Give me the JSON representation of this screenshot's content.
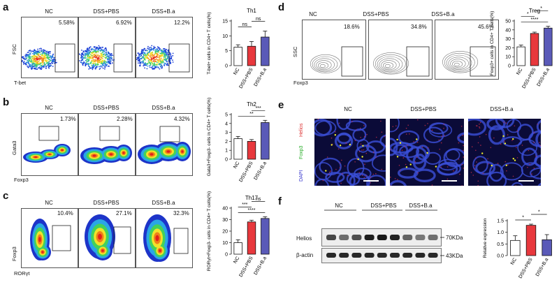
{
  "panels": {
    "a": {
      "label": "a",
      "groups": [
        "NC",
        "DSS+PBS",
        "DSS+B.a"
      ],
      "percentages": [
        "5.58%",
        "6.92%",
        "12.2%"
      ],
      "y_axis": "FSC",
      "x_axis": "T-bet"
    },
    "b": {
      "label": "b",
      "groups": [
        "NC",
        "DSS+PBS",
        "DSS+B.a"
      ],
      "percentages": [
        "1.73%",
        "2.28%",
        "4.32%"
      ],
      "y_axis": "Gata3",
      "x_axis": "Foxp3"
    },
    "c": {
      "label": "c",
      "groups": [
        "NC",
        "DSS+PBS",
        "DSS+B.a"
      ],
      "percentages": [
        "10.4%",
        "27.1%",
        "32.3%"
      ],
      "y_axis": "Foxp3",
      "x_axis": "RORγt"
    },
    "d": {
      "label": "d",
      "groups": [
        "NC",
        "DSS+PBS",
        "DSS+B.a"
      ],
      "percentages": [
        "18.6%",
        "34.8%",
        "45.6%"
      ],
      "y_axis": "SSC",
      "x_axis": "Foxp3"
    },
    "e": {
      "label": "e",
      "groups": [
        "NC",
        "DSS+PBS",
        "DSS+B.a"
      ],
      "stains": {
        "helios": "Helios",
        "foxp3": "Foxp3",
        "dapi": "DAPI"
      }
    },
    "f": {
      "label": "f",
      "groups": [
        "NC",
        "DSS+PBS",
        "DSS+B.a"
      ],
      "rows": [
        "Helios",
        "β-actin"
      ],
      "sizes": [
        "70KDa",
        "43KDa"
      ]
    }
  },
  "colors": {
    "nc": "#ffffff",
    "pbs": "#e8383d",
    "ba": "#5a5ab8"
  },
  "chart_data": [
    {
      "id": "a",
      "type": "bar",
      "title": "Th1",
      "ylabel": "T-bet+ cells in CD4+ T cells(%)",
      "categories": [
        "NC",
        "DSS+PBS",
        "DSS+B.a"
      ],
      "values": [
        6.2,
        6.5,
        9.6
      ],
      "errors": [
        0.8,
        1.6,
        2.0
      ],
      "ylim": [
        0,
        15
      ],
      "yticks": [
        0,
        5,
        10,
        15
      ],
      "significance": [
        {
          "from": 0,
          "to": 1,
          "label": "ns"
        },
        {
          "from": 1,
          "to": 2,
          "label": "ns"
        }
      ]
    },
    {
      "id": "b",
      "type": "bar",
      "title": "Th2",
      "ylabel": "Gata3+Foxp3- cells in CD4+ T cells(%)",
      "categories": [
        "NC",
        "DSS+PBS",
        "DSS+B.a"
      ],
      "values": [
        2.3,
        2.0,
        4.1
      ],
      "errors": [
        0.25,
        0.2,
        0.25
      ],
      "ylim": [
        0,
        5
      ],
      "yticks": [
        0,
        1,
        2,
        3,
        4,
        5
      ],
      "significance": [
        {
          "from": 0,
          "to": 2,
          "label": "**"
        },
        {
          "from": 1,
          "to": 2,
          "label": "***"
        }
      ]
    },
    {
      "id": "c",
      "type": "bar",
      "title": "Th17",
      "ylabel": "RORγt+Foxp3- cells in CD4+ T cells(%)",
      "categories": [
        "NC",
        "DSS+PBS",
        "DSS+B.a"
      ],
      "values": [
        10,
        28,
        31
      ],
      "errors": [
        2.5,
        1.5,
        1.5
      ],
      "ylim": [
        0,
        40
      ],
      "yticks": [
        0,
        10,
        20,
        30,
        40
      ],
      "significance": [
        {
          "from": 0,
          "to": 2,
          "label": "****"
        },
        {
          "from": 0,
          "to": 1,
          "label": "***"
        },
        {
          "from": 1,
          "to": 2,
          "label": "ns"
        }
      ]
    },
    {
      "id": "d",
      "type": "bar",
      "title": "Treg",
      "ylabel": "Foxp3+ cells in CD4+ T cells(%)",
      "categories": [
        "NC",
        "DSS+PBS",
        "DSS+B.a"
      ],
      "values": [
        21,
        36,
        42
      ],
      "errors": [
        2,
        1.5,
        2
      ],
      "ylim": [
        0,
        50
      ],
      "yticks": [
        0,
        10,
        20,
        30,
        40,
        50
      ],
      "significance": [
        {
          "from": 0,
          "to": 2,
          "label": "****"
        },
        {
          "from": 0,
          "to": 1,
          "label": "*"
        },
        {
          "from": 1,
          "to": 2,
          "label": "*"
        }
      ]
    },
    {
      "id": "f",
      "type": "bar",
      "title": "",
      "ylabel": "Relative expression",
      "categories": [
        "NC",
        "DSS+PBS",
        "DSS+B.a"
      ],
      "values": [
        0.65,
        1.3,
        0.68
      ],
      "errors": [
        0.2,
        0.05,
        0.22
      ],
      "ylim": [
        0,
        1.5
      ],
      "yticks": [
        0.0,
        0.5,
        1.0,
        1.5
      ],
      "significance": [
        {
          "from": 0,
          "to": 1,
          "label": "*"
        },
        {
          "from": 1,
          "to": 2,
          "label": "*"
        }
      ]
    }
  ]
}
